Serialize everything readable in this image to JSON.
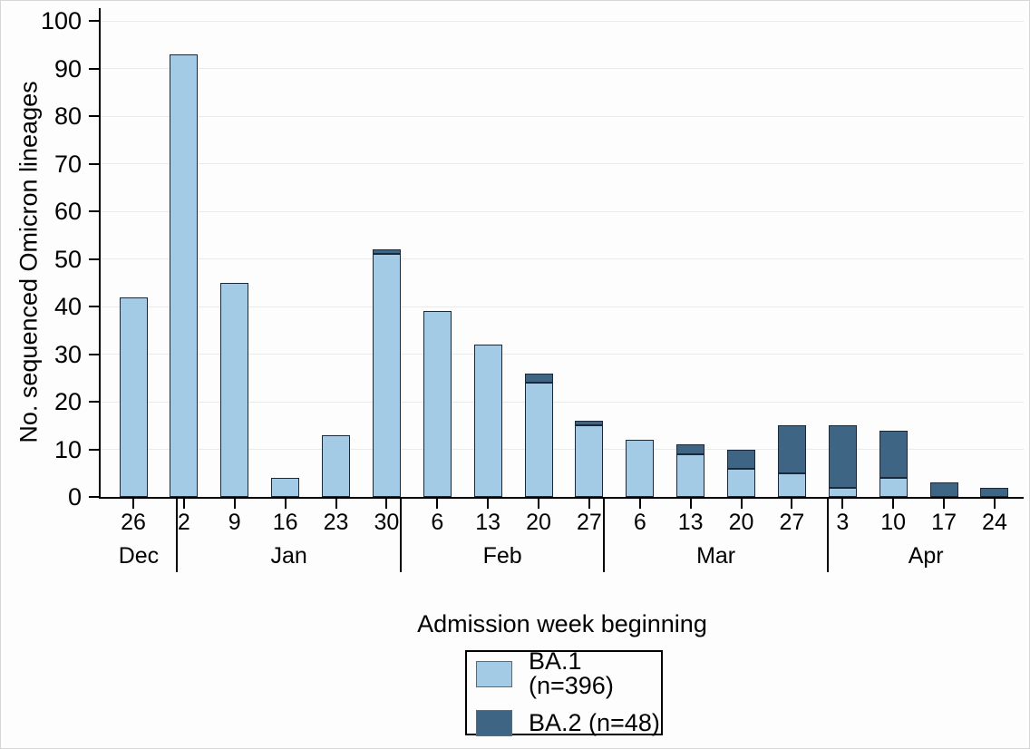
{
  "chart_data": {
    "type": "bar",
    "stacked": true,
    "title": "",
    "xlabel": "Admission week beginning",
    "ylabel": "No. sequenced Omicron lineages",
    "ylim": [
      0,
      100
    ],
    "yticks": [
      0,
      10,
      20,
      30,
      40,
      50,
      60,
      70,
      80,
      90,
      100
    ],
    "grid": "horizontal",
    "categories": [
      "26",
      "2",
      "9",
      "16",
      "23",
      "30",
      "6",
      "13",
      "20",
      "27",
      "6",
      "13",
      "20",
      "27",
      "3",
      "10",
      "17",
      "24"
    ],
    "months": [
      {
        "label": "Dec",
        "week_count": 1
      },
      {
        "label": "Jan",
        "week_count": 5
      },
      {
        "label": "Feb",
        "week_count": 4
      },
      {
        "label": "Mar",
        "week_count": 4
      },
      {
        "label": "Apr",
        "week_count": 4
      }
    ],
    "month_divider_positions_bar_units": [
      0.857,
      5.286,
      9.286,
      13.714
    ],
    "series": [
      {
        "name": "BA.1 (n=396)",
        "color": "#a3cbe6",
        "values": [
          42,
          93,
          45,
          4,
          13,
          51,
          39,
          32,
          24,
          15,
          12,
          9,
          6,
          5,
          2,
          4,
          0,
          0
        ]
      },
      {
        "name": "BA.2 (n=48)",
        "color": "#3f6585",
        "values": [
          0,
          0,
          0,
          0,
          0,
          1,
          0,
          0,
          2,
          1,
          0,
          2,
          4,
          10,
          13,
          10,
          3,
          2
        ]
      }
    ],
    "legend": {
      "position": "bottom-center",
      "border": true
    }
  }
}
